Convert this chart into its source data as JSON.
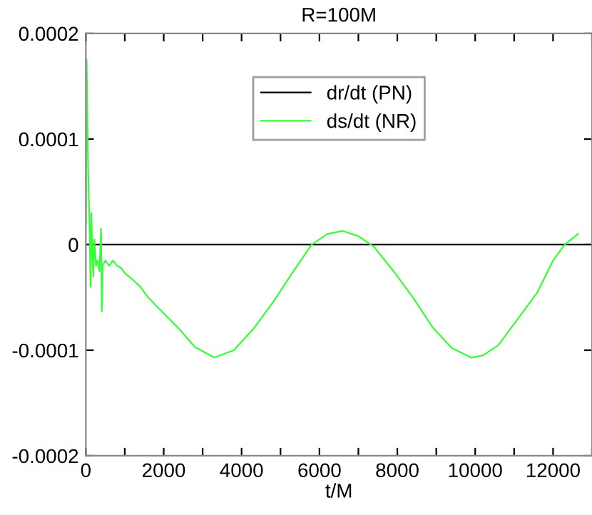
{
  "chart_data": {
    "type": "line",
    "title": "R=100M",
    "xlabel": "t/M",
    "xlim": [
      0,
      13000
    ],
    "ylim": [
      -0.0002,
      0.0002
    ],
    "xticks": [
      0,
      {
        "value": 1000,
        "label": null
      },
      2000,
      {
        "value": 3000,
        "label": null
      },
      4000,
      {
        "value": 5000,
        "label": null
      },
      6000,
      {
        "value": 7000,
        "label": null
      },
      8000,
      {
        "value": 9000,
        "label": null
      },
      10000,
      {
        "value": 11000,
        "label": null
      },
      12000,
      {
        "value": 13000,
        "label": null
      }
    ],
    "yticks": [
      -0.0002,
      -0.0001,
      0,
      0.0001,
      0.0002
    ],
    "legend": "top center",
    "grid": false,
    "line_style": "solid",
    "marker": "none",
    "series": [
      {
        "name": "dr/dt (PN)",
        "color": "#000000",
        "x": [
          0,
          13000
        ],
        "values": [
          0,
          0
        ]
      },
      {
        "name": "ds/dt (NR)",
        "color": "#33ff33",
        "x": [
          0,
          20,
          40,
          60,
          80,
          100,
          120,
          140,
          170,
          190,
          220,
          260,
          300,
          350,
          390,
          410,
          430,
          500,
          600,
          700,
          800,
          900,
          1000,
          1200,
          1400,
          1600,
          2000,
          2400,
          2800,
          3300,
          3800,
          4300,
          4800,
          5300,
          5800,
          6200,
          6600,
          7000,
          7400,
          7900,
          8400,
          8900,
          9400,
          9900,
          10200,
          10600,
          11100,
          11600,
          12000,
          12300,
          12640
        ],
        "values": [
          2e-05,
          0.000175,
          0.00012,
          7e-05,
          4e-05,
          1e-05,
          -4e-05,
          3e-05,
          -1e-05,
          -3e-05,
          5e-06,
          -2e-05,
          -1.5e-05,
          -2.5e-05,
          1.5e-05,
          -6.3e-05,
          -2e-05,
          -1.5e-05,
          -2e-05,
          -1.5e-05,
          -2e-05,
          -2.2e-05,
          -2.7e-05,
          -3.3e-05,
          -4e-05,
          -5e-05,
          -6.5e-05,
          -8e-05,
          -9.7e-05,
          -0.000107,
          -0.0001,
          -8e-05,
          -5.5e-05,
          -2.7e-05,
          0,
          1e-05,
          1.3e-05,
          8e-06,
          -2e-06,
          -2.5e-05,
          -5e-05,
          -7.8e-05,
          -9.8e-05,
          -0.000107,
          -0.000105,
          -9.5e-05,
          -7e-05,
          -4.5e-05,
          -1.5e-05,
          0,
          1e-05
        ]
      }
    ]
  }
}
